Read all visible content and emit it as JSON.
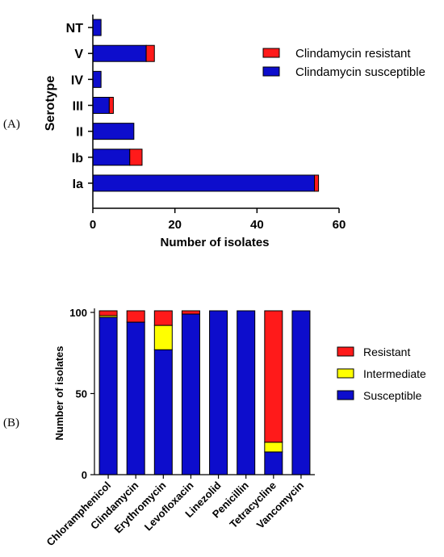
{
  "colors": {
    "resistant": "#ff1a1a",
    "intermediate": "#ffff00",
    "susceptible": "#0d0dcc"
  },
  "chart_data": [
    {
      "panel_label": "(A)",
      "type": "bar",
      "orientation": "horizontal",
      "stacked": true,
      "categories": [
        "NT",
        "V",
        "IV",
        "III",
        "II",
        "Ib",
        "Ia"
      ],
      "series": [
        {
          "name": "Clindamycin susceptible",
          "color": "#0d0dcc",
          "values": [
            2,
            13,
            2,
            4,
            10,
            9,
            54
          ]
        },
        {
          "name": "Clindamycin resistant",
          "color": "#ff1a1a",
          "values": [
            0,
            2,
            0,
            1,
            0,
            3,
            1
          ]
        }
      ],
      "xlabel": "Number of isolates",
      "ylabel": "Serotype",
      "xlim": [
        0,
        60
      ],
      "xticks": [
        "0",
        "20",
        "40",
        "60"
      ],
      "legend_position": "right",
      "grid": false
    },
    {
      "panel_label": "(B)",
      "type": "bar",
      "orientation": "vertical",
      "stacked": true,
      "categories": [
        "Chloramphenicol",
        "Clindamycin",
        "Erythromycin",
        "Levofloxacin",
        "Linezolid",
        "Penicillin",
        "Tetracycline",
        "Vancomycin"
      ],
      "series": [
        {
          "name": "Susceptible",
          "color": "#0d0dcc",
          "values": [
            97,
            94,
            77,
            99,
            101,
            101,
            14,
            101
          ]
        },
        {
          "name": "Intermediate",
          "color": "#ffff00",
          "values": [
            1,
            0,
            15,
            0,
            0,
            0,
            6,
            0
          ]
        },
        {
          "name": "Resistant",
          "color": "#ff1a1a",
          "values": [
            3,
            7,
            9,
            2,
            0,
            0,
            81,
            0
          ]
        }
      ],
      "xlabel": "",
      "ylabel": "Number of isolates",
      "ylim": [
        0,
        100
      ],
      "yticks": [
        "0",
        "50",
        "100"
      ],
      "legend_position": "right",
      "grid": false
    }
  ]
}
